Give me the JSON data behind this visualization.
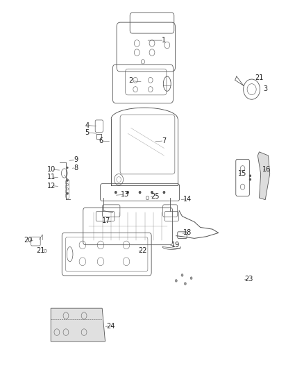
{
  "background_color": "#ffffff",
  "fig_width": 4.38,
  "fig_height": 5.33,
  "dpi": 100,
  "label_fontsize": 7,
  "label_color": "#222222",
  "line_color": "#555555",
  "line_width": 0.6
}
